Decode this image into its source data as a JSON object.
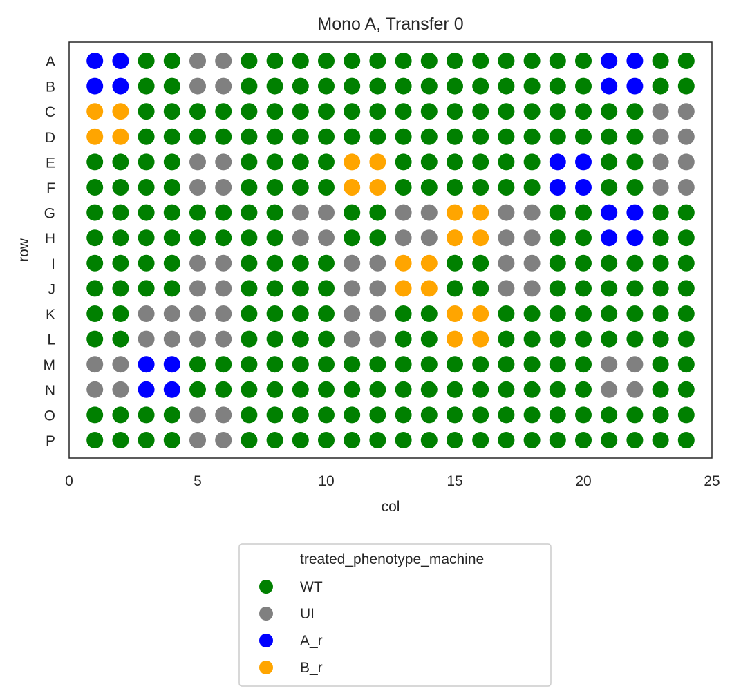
{
  "chart_data": {
    "type": "scatter",
    "title": "Mono A, Transfer 0",
    "xlabel": "col",
    "ylabel": "row",
    "xlim": [
      0,
      25
    ],
    "xticks": [
      0,
      5,
      10,
      15,
      20,
      25
    ],
    "rows": [
      "A",
      "B",
      "C",
      "D",
      "E",
      "F",
      "G",
      "H",
      "I",
      "J",
      "K",
      "L",
      "M",
      "N",
      "O",
      "P"
    ],
    "columns": [
      1,
      2,
      3,
      4,
      5,
      6,
      7,
      8,
      9,
      10,
      11,
      12,
      13,
      14,
      15,
      16,
      17,
      18,
      19,
      20,
      21,
      22,
      23,
      24
    ],
    "grid": false,
    "legend_position": "below the plot",
    "legend": {
      "title": "treated_phenotype_machine",
      "entries": [
        {
          "code": "W",
          "label": "WT",
          "color": "#008000"
        },
        {
          "code": "U",
          "label": "UI",
          "color": "#808080"
        },
        {
          "code": "A",
          "label": "A_r",
          "color": "#0000ff"
        },
        {
          "code": "B",
          "label": "B_r",
          "color": "#ffa500"
        }
      ]
    },
    "wells": [
      "AAWWUUWWWWWWWWWWWWWWAAWW",
      "AAWWUUWWWWWWWWWWWWWWAAWW",
      "BBWWWWWWWWWWWWWWWWWWWWUU",
      "BBWWWWWWWWWWWWWWWWWWWWUU",
      "WWWWUUWWWWBBWWWWWWAAWWUU",
      "WWWWUUWWWWBBWWWWWWAAWWUU",
      "WWWWWWWWUUWWUUBBUUWWAAWW",
      "WWWWWWWWUUWWUUBBUUWWAAWW",
      "WWWWUUWWWWUUBBWWUUWWWWWW",
      "WWWWUUWWWWUUBBWWUUWWWWWW",
      "WWUUUUWWWWUUWWBBWWWWWWWW",
      "WWUUUUWWWWUUWWBBWWWWWWWW",
      "UUAAWWWWWWWWWWWWWWWWUUWW",
      "UUAAWWWWWWWWWWWWWWWWUUWW",
      "WWWWUUWWWWWWWWWWWWWWWWWW",
      "WWWWUUWWWWWWWWWWWWWWWWWW"
    ]
  }
}
